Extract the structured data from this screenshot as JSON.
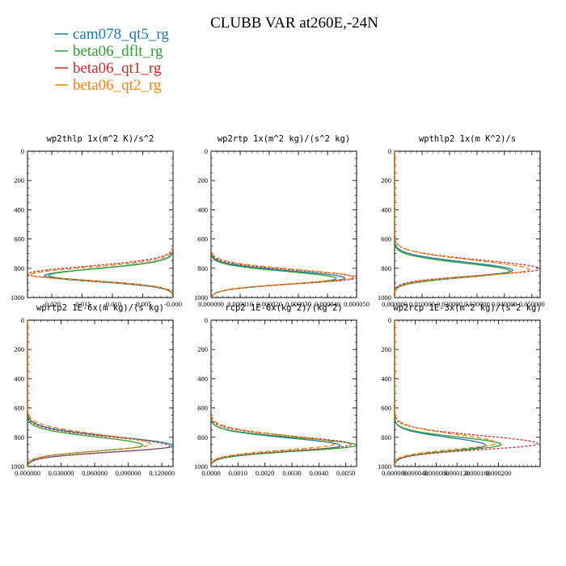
{
  "figure": {
    "title": "CLUBB VAR at260E,-24N",
    "legend": [
      {
        "name": "cam078_qt5_rg",
        "color": "#1f77b4"
      },
      {
        "name": "beta06_dflt_rg",
        "color": "#2ca02c"
      },
      {
        "name": "beta06_qt1_rg",
        "color": "#d62728"
      },
      {
        "name": "beta06_qt2_rg",
        "color": "#ff7f0e"
      }
    ]
  },
  "chart_data": [
    {
      "type": "line",
      "title": "wp2thlp  1x(m^2 K)/s^2",
      "xlim": [
        -0.024,
        0.0
      ],
      "xticks": [
        -0.02,
        -0.015,
        -0.01,
        -0.005,
        -0.0
      ],
      "xticklabels": [
        "-0.020",
        "-0.015",
        "-0.010",
        "-0.005",
        "-0.000"
      ],
      "ylim": [
        1000,
        0
      ],
      "yticks": [
        0,
        200,
        400,
        600,
        800,
        1000
      ],
      "series": [
        {
          "name": "cam078_qt5_rg",
          "peak": -0.0212,
          "p": 852,
          "wu": 70,
          "wl": 55
        },
        {
          "name": "beta06_dflt_rg",
          "peak": -0.0205,
          "p": 850,
          "wu": 68,
          "wl": 55
        },
        {
          "name": "beta06_qt1_rg",
          "peak": -0.024,
          "p": 840,
          "wu": 75,
          "wl": 58
        },
        {
          "name": "beta06_qt2_rg",
          "peak": -0.0235,
          "p": 845,
          "wu": 72,
          "wl": 56
        }
      ]
    },
    {
      "type": "line",
      "title": "wp2rtp  1x(m^2 kg)/(s^2 kg)",
      "xlim": [
        0,
        5e-05
      ],
      "xticks": [
        0,
        1e-05,
        2e-05,
        3e-05,
        4e-05,
        5e-05
      ],
      "xticklabels": [
        "0.000000",
        "0.000010",
        "0.000020",
        "0.000030",
        "0.000040",
        "0.000050"
      ],
      "ylim": [
        1000,
        0
      ],
      "yticks": [
        0,
        200,
        400,
        600,
        800,
        1000
      ],
      "series": [
        {
          "name": "cam078_qt5_rg",
          "peak": 4.6e-05,
          "p": 868,
          "wu": 70,
          "wl": 55
        },
        {
          "name": "beta06_dflt_rg",
          "peak": 4.3e-05,
          "p": 870,
          "wu": 68,
          "wl": 55
        },
        {
          "name": "beta06_qt1_rg",
          "peak": 5e-05,
          "p": 865,
          "wu": 72,
          "wl": 56
        },
        {
          "name": "beta06_qt2_rg",
          "peak": 4.9e-05,
          "p": 862,
          "wu": 75,
          "wl": 58
        }
      ]
    },
    {
      "type": "line",
      "title": "wpthlp2  1x(m K^2)/s",
      "xlim": [
        0,
        0.053
      ],
      "xticks": [
        0,
        0.01,
        0.02,
        0.03,
        0.04,
        0.05
      ],
      "xticklabels": [
        "0.000000",
        "0.010000",
        "0.020000",
        "0.030000",
        "0.040000",
        "0.050000"
      ],
      "ylim": [
        1000,
        0
      ],
      "yticks": [
        0,
        200,
        400,
        600,
        800,
        1000
      ],
      "series": [
        {
          "name": "cam078_qt5_rg",
          "peak": 0.043,
          "p": 815,
          "wu": 80,
          "wl": 60
        },
        {
          "name": "beta06_dflt_rg",
          "peak": 0.042,
          "p": 820,
          "wu": 78,
          "wl": 60
        },
        {
          "name": "beta06_qt1_rg",
          "peak": 0.053,
          "p": 805,
          "wu": 85,
          "wl": 60
        },
        {
          "name": "beta06_qt2_rg",
          "peak": 0.049,
          "p": 810,
          "wu": 90,
          "wl": 62
        }
      ]
    },
    {
      "type": "line",
      "title": "wprtp2  1E-6x(m kg)/(s kg)",
      "xlim": [
        0,
        0.13
      ],
      "xticks": [
        0,
        0.03,
        0.06,
        0.09,
        0.12
      ],
      "xticklabels": [
        "0.000000",
        "0.030000",
        "0.060000",
        "0.090000",
        "0.120000"
      ],
      "ylim": [
        1000,
        0
      ],
      "yticks": [
        0,
        200,
        400,
        600,
        800,
        1000
      ],
      "series": [
        {
          "name": "cam078_qt5_rg",
          "peak": 0.13,
          "p": 860,
          "wu": 90,
          "wl": 55
        },
        {
          "name": "beta06_dflt_rg",
          "peak": 0.103,
          "p": 855,
          "wu": 80,
          "wl": 55
        },
        {
          "name": "beta06_qt1_rg",
          "peak": 0.127,
          "p": 862,
          "wu": 88,
          "wl": 55
        },
        {
          "name": "beta06_qt2_rg",
          "peak": 0.11,
          "p": 850,
          "wu": 95,
          "wl": 58
        }
      ]
    },
    {
      "type": "line",
      "title": "rcp2  1E-6x(kg^2)/(kg^2)",
      "xlim": [
        0,
        0.0054
      ],
      "xticks": [
        0,
        0.001,
        0.002,
        0.003,
        0.004,
        0.005
      ],
      "xticklabels": [
        "0.0000",
        "0.0010",
        "0.0020",
        "0.0030",
        "0.0040",
        "0.0050"
      ],
      "ylim": [
        1000,
        0
      ],
      "yticks": [
        0,
        200,
        400,
        600,
        800,
        1000
      ],
      "series": [
        {
          "name": "cam078_qt5_rg",
          "peak": 0.0048,
          "p": 858,
          "wu": 75,
          "wl": 55
        },
        {
          "name": "beta06_dflt_rg",
          "peak": 0.0054,
          "p": 855,
          "wu": 72,
          "wl": 55
        },
        {
          "name": "beta06_qt1_rg",
          "peak": 0.0052,
          "p": 850,
          "wu": 78,
          "wl": 56
        },
        {
          "name": "beta06_qt2_rg",
          "peak": 0.0046,
          "p": 845,
          "wu": 82,
          "wl": 58
        }
      ]
    },
    {
      "type": "line",
      "title": "wp2rcp  1E-3x(m^2 kg)/(s^2 kg)",
      "xlim": [
        0,
        0.00028
      ],
      "xticks": [
        0,
        4e-05,
        8e-05,
        0.00012,
        0.00016,
        0.0002
      ],
      "xticklabels": [
        "0.000000",
        "0.000040",
        "0.000080",
        "0.000120",
        "0.000160",
        "0.000200"
      ],
      "ylim": [
        1000,
        0
      ],
      "yticks": [
        0,
        200,
        400,
        600,
        800,
        1000
      ],
      "series": [
        {
          "name": "cam078_qt5_rg",
          "peak": 0.000175,
          "p": 855,
          "wu": 75,
          "wl": 55
        },
        {
          "name": "beta06_dflt_rg",
          "peak": 0.000205,
          "p": 850,
          "wu": 72,
          "wl": 55
        },
        {
          "name": "beta06_qt1_rg",
          "peak": 0.000275,
          "p": 845,
          "wu": 80,
          "wl": 56
        },
        {
          "name": "beta06_qt2_rg",
          "peak": 0.000195,
          "p": 840,
          "wu": 85,
          "wl": 58
        }
      ]
    }
  ]
}
